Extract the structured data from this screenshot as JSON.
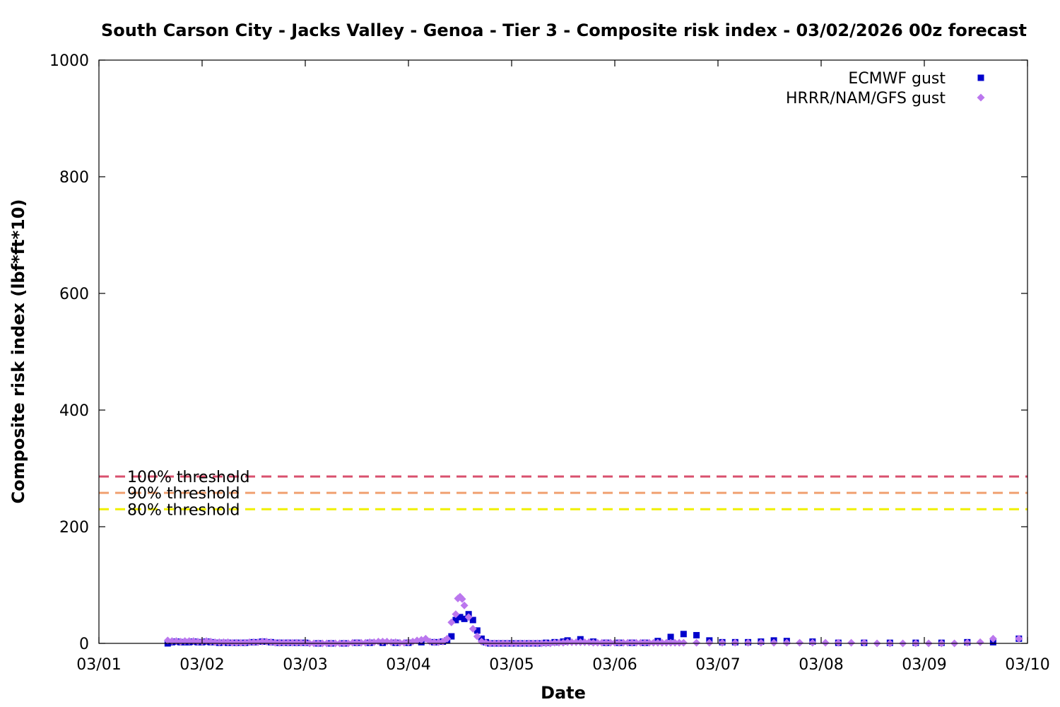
{
  "chart_data": {
    "type": "scatter",
    "title": "South Carson City - Jacks Valley - Genoa - Tier 3 - Composite risk index - 03/02/2026 00z forecast",
    "xlabel": "Date",
    "ylabel": "Composite risk index (lbf*ft*10)",
    "xlim": [
      "03/01",
      "03/10"
    ],
    "x_ticks": [
      "03/01",
      "03/02",
      "03/03",
      "03/04",
      "03/05",
      "03/06",
      "03/07",
      "03/08",
      "03/09",
      "03/10"
    ],
    "ylim": [
      0,
      1000
    ],
    "y_ticks": [
      0,
      200,
      400,
      600,
      800,
      1000
    ],
    "grid": false,
    "legend_position": "top-right",
    "thresholds": [
      {
        "label": "100% threshold",
        "value": 286,
        "color": "#d9506e"
      },
      {
        "label": "90% threshold",
        "value": 258,
        "color": "#f0a070"
      },
      {
        "label": "80% threshold",
        "value": 230,
        "color": "#f0f000"
      }
    ],
    "series": [
      {
        "name": "ECMWF gust",
        "marker": "square",
        "color": "#0000cc",
        "points": [
          [
            "03/01 16:00",
            0
          ],
          [
            "03/01 17:00",
            2
          ],
          [
            "03/01 18:00",
            3
          ],
          [
            "03/01 19:00",
            2
          ],
          [
            "03/01 20:00",
            2
          ],
          [
            "03/01 21:00",
            2
          ],
          [
            "03/01 22:00",
            3
          ],
          [
            "03/01 23:00",
            2
          ],
          [
            "03/02 00:00",
            2
          ],
          [
            "03/02 01:00",
            3
          ],
          [
            "03/02 02:00",
            2
          ],
          [
            "03/02 04:00",
            1
          ],
          [
            "03/02 06:00",
            1
          ],
          [
            "03/02 08:00",
            1
          ],
          [
            "03/02 10:00",
            1
          ],
          [
            "03/02 12:00",
            2
          ],
          [
            "03/02 14:00",
            3
          ],
          [
            "03/02 16:00",
            2
          ],
          [
            "03/02 18:00",
            1
          ],
          [
            "03/02 20:00",
            1
          ],
          [
            "03/02 22:00",
            1
          ],
          [
            "03/03 00:00",
            1
          ],
          [
            "03/03 03:00",
            0
          ],
          [
            "03/03 06:00",
            0
          ],
          [
            "03/03 09:00",
            0
          ],
          [
            "03/03 12:00",
            1
          ],
          [
            "03/03 15:00",
            1
          ],
          [
            "03/03 18:00",
            1
          ],
          [
            "03/03 21:00",
            1
          ],
          [
            "03/04 00:00",
            1
          ],
          [
            "03/04 03:00",
            2
          ],
          [
            "03/04 06:00",
            2
          ],
          [
            "03/04 08:00",
            3
          ],
          [
            "03/04 09:00",
            5
          ],
          [
            "03/04 10:00",
            12
          ],
          [
            "03/04 11:00",
            40
          ],
          [
            "03/04 12:00",
            45
          ],
          [
            "03/04 13:00",
            42
          ],
          [
            "03/04 14:00",
            50
          ],
          [
            "03/04 15:00",
            40
          ],
          [
            "03/04 16:00",
            22
          ],
          [
            "03/04 17:00",
            8
          ],
          [
            "03/04 18:00",
            2
          ],
          [
            "03/04 19:00",
            0
          ],
          [
            "03/04 20:00",
            0
          ],
          [
            "03/04 21:00",
            0
          ],
          [
            "03/04 22:00",
            0
          ],
          [
            "03/04 23:00",
            0
          ],
          [
            "03/05 00:00",
            0
          ],
          [
            "03/05 02:00",
            0
          ],
          [
            "03/05 04:00",
            0
          ],
          [
            "03/05 06:00",
            0
          ],
          [
            "03/05 08:00",
            1
          ],
          [
            "03/05 10:00",
            2
          ],
          [
            "03/05 12:00",
            3
          ],
          [
            "03/05 13:00",
            5
          ],
          [
            "03/05 16:00",
            7
          ],
          [
            "03/05 19:00",
            3
          ],
          [
            "03/05 22:00",
            1
          ],
          [
            "03/06 01:00",
            1
          ],
          [
            "03/06 04:00",
            1
          ],
          [
            "03/06 07:00",
            1
          ],
          [
            "03/06 10:00",
            4
          ],
          [
            "03/06 13:00",
            11
          ],
          [
            "03/06 16:00",
            16
          ],
          [
            "03/06 19:00",
            14
          ],
          [
            "03/06 22:00",
            5
          ],
          [
            "03/07 01:00",
            2
          ],
          [
            "03/07 04:00",
            2
          ],
          [
            "03/07 07:00",
            2
          ],
          [
            "03/07 10:00",
            3
          ],
          [
            "03/07 13:00",
            5
          ],
          [
            "03/07 16:00",
            4
          ],
          [
            "03/07 22:00",
            3
          ],
          [
            "03/08 04:00",
            1
          ],
          [
            "03/08 10:00",
            1
          ],
          [
            "03/08 16:00",
            1
          ],
          [
            "03/08 22:00",
            1
          ],
          [
            "03/09 04:00",
            1
          ],
          [
            "03/09 10:00",
            2
          ],
          [
            "03/09 16:00",
            2
          ],
          [
            "03/09 22:00",
            8
          ]
        ]
      },
      {
        "name": "HRRR/NAM/GFS gust",
        "marker": "diamond",
        "color": "#bb77ee",
        "points": [
          [
            "03/01 16:00",
            5
          ],
          [
            "03/01 17:00",
            4
          ],
          [
            "03/01 18:00",
            4
          ],
          [
            "03/01 19:00",
            3
          ],
          [
            "03/01 20:00",
            4
          ],
          [
            "03/01 21:00",
            4
          ],
          [
            "03/01 22:00",
            4
          ],
          [
            "03/01 23:00",
            3
          ],
          [
            "03/02 00:00",
            3
          ],
          [
            "03/02 01:00",
            4
          ],
          [
            "03/02 02:00",
            3
          ],
          [
            "03/02 03:00",
            2
          ],
          [
            "03/02 04:00",
            2
          ],
          [
            "03/02 05:00",
            2
          ],
          [
            "03/02 06:00",
            2
          ],
          [
            "03/02 07:00",
            1
          ],
          [
            "03/02 08:00",
            1
          ],
          [
            "03/02 09:00",
            1
          ],
          [
            "03/02 10:00",
            1
          ],
          [
            "03/02 11:00",
            2
          ],
          [
            "03/02 12:00",
            2
          ],
          [
            "03/02 13:00",
            2
          ],
          [
            "03/02 14:00",
            3
          ],
          [
            "03/02 15:00",
            3
          ],
          [
            "03/02 16:00",
            2
          ],
          [
            "03/02 17:00",
            1
          ],
          [
            "03/02 18:00",
            1
          ],
          [
            "03/02 19:00",
            1
          ],
          [
            "03/02 20:00",
            1
          ],
          [
            "03/02 21:00",
            1
          ],
          [
            "03/02 22:00",
            1
          ],
          [
            "03/02 23:00",
            1
          ],
          [
            "03/03 00:00",
            1
          ],
          [
            "03/03 01:00",
            0
          ],
          [
            "03/03 02:00",
            0
          ],
          [
            "03/03 03:00",
            0
          ],
          [
            "03/03 04:00",
            0
          ],
          [
            "03/03 05:00",
            0
          ],
          [
            "03/03 06:00",
            0
          ],
          [
            "03/03 07:00",
            0
          ],
          [
            "03/03 08:00",
            0
          ],
          [
            "03/03 09:00",
            0
          ],
          [
            "03/03 10:00",
            0
          ],
          [
            "03/03 11:00",
            1
          ],
          [
            "03/03 12:00",
            1
          ],
          [
            "03/03 13:00",
            1
          ],
          [
            "03/03 14:00",
            1
          ],
          [
            "03/03 15:00",
            2
          ],
          [
            "03/03 16:00",
            2
          ],
          [
            "03/03 17:00",
            3
          ],
          [
            "03/03 18:00",
            3
          ],
          [
            "03/03 19:00",
            3
          ],
          [
            "03/03 20:00",
            2
          ],
          [
            "03/03 21:00",
            2
          ],
          [
            "03/03 22:00",
            1
          ],
          [
            "03/03 23:00",
            1
          ],
          [
            "03/04 00:00",
            2
          ],
          [
            "03/04 01:00",
            3
          ],
          [
            "03/04 02:00",
            5
          ],
          [
            "03/04 03:00",
            6
          ],
          [
            "03/04 04:00",
            8
          ],
          [
            "03/04 05:00",
            3
          ],
          [
            "03/04 06:00",
            2
          ],
          [
            "03/04 07:00",
            2
          ],
          [
            "03/04 08:00",
            3
          ],
          [
            "03/04 09:00",
            8
          ],
          [
            "03/04 10:00",
            36
          ],
          [
            "03/04 11:00",
            50
          ],
          [
            "03/04 11:30",
            77
          ],
          [
            "03/04 12:00",
            80
          ],
          [
            "03/04 12:30",
            76
          ],
          [
            "03/04 13:00",
            65
          ],
          [
            "03/04 14:00",
            45
          ],
          [
            "03/04 15:00",
            25
          ],
          [
            "03/04 16:00",
            12
          ],
          [
            "03/04 17:00",
            3
          ],
          [
            "03/04 18:00",
            1
          ],
          [
            "03/04 19:00",
            0
          ],
          [
            "03/04 20:00",
            0
          ],
          [
            "03/04 21:00",
            0
          ],
          [
            "03/04 22:00",
            0
          ],
          [
            "03/04 23:00",
            0
          ],
          [
            "03/05 00:00",
            0
          ],
          [
            "03/05 01:00",
            0
          ],
          [
            "03/05 02:00",
            0
          ],
          [
            "03/05 03:00",
            0
          ],
          [
            "03/05 04:00",
            0
          ],
          [
            "03/05 05:00",
            0
          ],
          [
            "03/05 06:00",
            0
          ],
          [
            "03/05 07:00",
            0
          ],
          [
            "03/05 08:00",
            0
          ],
          [
            "03/05 09:00",
            0
          ],
          [
            "03/05 10:00",
            1
          ],
          [
            "03/05 11:00",
            1
          ],
          [
            "03/05 12:00",
            1
          ],
          [
            "03/05 13:00",
            2
          ],
          [
            "03/05 14:00",
            2
          ],
          [
            "03/05 15:00",
            2
          ],
          [
            "03/05 16:00",
            2
          ],
          [
            "03/05 17:00",
            2
          ],
          [
            "03/05 18:00",
            2
          ],
          [
            "03/05 19:00",
            1
          ],
          [
            "03/05 20:00",
            1
          ],
          [
            "03/05 21:00",
            1
          ],
          [
            "03/05 22:00",
            1
          ],
          [
            "03/05 23:00",
            1
          ],
          [
            "03/06 00:00",
            1
          ],
          [
            "03/06 01:00",
            1
          ],
          [
            "03/06 02:00",
            1
          ],
          [
            "03/06 03:00",
            1
          ],
          [
            "03/06 04:00",
            1
          ],
          [
            "03/06 05:00",
            1
          ],
          [
            "03/06 06:00",
            1
          ],
          [
            "03/06 07:00",
            1
          ],
          [
            "03/06 08:00",
            1
          ],
          [
            "03/06 09:00",
            1
          ],
          [
            "03/06 10:00",
            1
          ],
          [
            "03/06 11:00",
            1
          ],
          [
            "03/06 12:00",
            1
          ],
          [
            "03/06 13:00",
            1
          ],
          [
            "03/06 14:00",
            1
          ],
          [
            "03/06 15:00",
            1
          ],
          [
            "03/06 16:00",
            1
          ],
          [
            "03/06 19:00",
            1
          ],
          [
            "03/06 22:00",
            1
          ],
          [
            "03/07 01:00",
            1
          ],
          [
            "03/07 04:00",
            1
          ],
          [
            "03/07 07:00",
            1
          ],
          [
            "03/07 10:00",
            1
          ],
          [
            "03/07 13:00",
            1
          ],
          [
            "03/07 16:00",
            1
          ],
          [
            "03/07 19:00",
            1
          ],
          [
            "03/07 22:00",
            1
          ],
          [
            "03/08 01:00",
            1
          ],
          [
            "03/08 04:00",
            1
          ],
          [
            "03/08 07:00",
            1
          ],
          [
            "03/08 10:00",
            1
          ],
          [
            "03/08 13:00",
            0
          ],
          [
            "03/08 16:00",
            0
          ],
          [
            "03/08 19:00",
            0
          ],
          [
            "03/08 22:00",
            0
          ],
          [
            "03/09 01:00",
            0
          ],
          [
            "03/09 04:00",
            0
          ],
          [
            "03/09 07:00",
            0
          ],
          [
            "03/09 10:00",
            1
          ],
          [
            "03/09 13:00",
            2
          ],
          [
            "03/09 16:00",
            8
          ],
          [
            "03/09 22:00",
            8
          ]
        ]
      }
    ]
  }
}
